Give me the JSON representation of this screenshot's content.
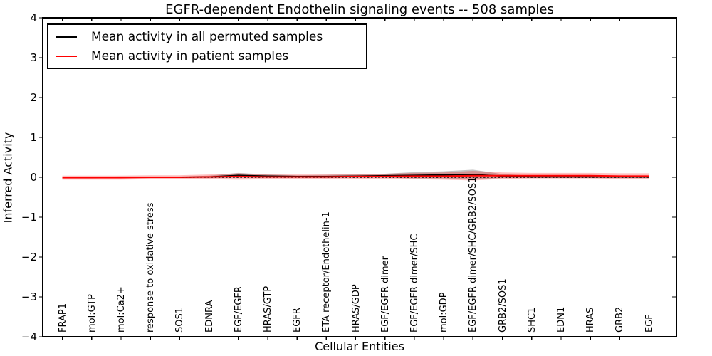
{
  "chart_data": {
    "type": "line",
    "title": "EGFR-dependent Endothelin signaling events -- 508 samples",
    "xlabel": "Cellular Entities",
    "ylabel": "Inferred Activity",
    "ylim": [
      -4,
      4
    ],
    "yticks": [
      4,
      3,
      2,
      1,
      0,
      -1,
      -2,
      -3,
      -4
    ],
    "ytick_labels": [
      "4",
      "3",
      "2",
      "1",
      "0",
      "−1",
      "−2",
      "−3",
      "−4"
    ],
    "grid": false,
    "legend_position": "upper left",
    "categories": [
      "FRAP1",
      "mol:GTP",
      "mol:Ca2+",
      "response to oxidative stress",
      "SOS1",
      "EDNRA",
      "EGF/EGFR",
      "HRAS/GTP",
      "EGFR",
      "ETA receptor/Endothelin-1",
      "HRAS/GDP",
      "EGF/EGFR dimer",
      "EGF/EGFR dimer/SHC",
      "mol:GDP",
      "EGF/EGFR dimer/SHC/GRB2/SOS1",
      "GRB2/SOS1",
      "SHC1",
      "EDN1",
      "HRAS",
      "GRB2",
      "EGF"
    ],
    "series": [
      {
        "name": "Mean activity in all permuted samples",
        "color": "#000000",
        "band_color": "rgba(90,90,90,0.35)",
        "line_width": 1.7,
        "values": [
          -0.01,
          -0.01,
          0.0,
          0.0,
          0.0,
          0.01,
          0.05,
          0.03,
          0.02,
          0.02,
          0.03,
          0.04,
          0.05,
          0.06,
          0.07,
          0.03,
          0.01,
          0.01,
          0.01,
          0.01,
          0.01
        ],
        "band_halfwidth": [
          0.02,
          0.02,
          0.02,
          0.02,
          0.02,
          0.03,
          0.06,
          0.04,
          0.03,
          0.04,
          0.04,
          0.05,
          0.08,
          0.09,
          0.12,
          0.05,
          0.03,
          0.03,
          0.03,
          0.03,
          0.03
        ]
      },
      {
        "name": "Mean activity in patient samples",
        "color": "#ff0000",
        "band_color": "rgba(255,0,0,0.25)",
        "line_width": 1.9,
        "values": [
          -0.01,
          -0.01,
          -0.01,
          0.0,
          0.0,
          0.01,
          0.02,
          0.01,
          0.01,
          0.01,
          0.02,
          0.02,
          0.03,
          0.03,
          0.04,
          0.04,
          0.04,
          0.04,
          0.04,
          0.03,
          0.03
        ],
        "band_halfwidth": [
          0.05,
          0.05,
          0.05,
          0.05,
          0.05,
          0.06,
          0.08,
          0.06,
          0.06,
          0.06,
          0.06,
          0.07,
          0.08,
          0.09,
          0.12,
          0.08,
          0.07,
          0.07,
          0.07,
          0.07,
          0.07
        ]
      }
    ],
    "zero_line": {
      "y": 0,
      "color": "#000000",
      "style": "dotted"
    }
  }
}
